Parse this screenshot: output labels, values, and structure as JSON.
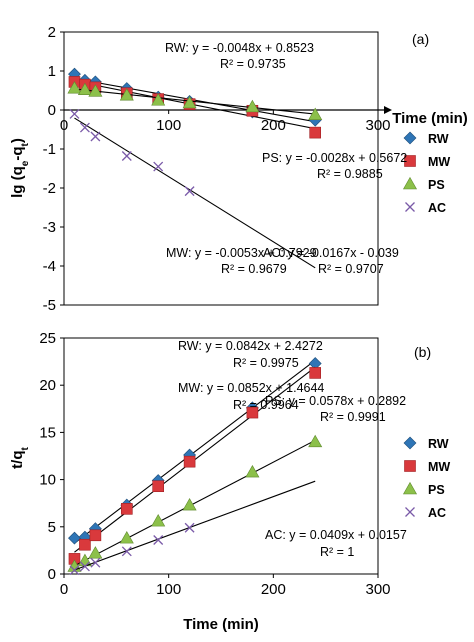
{
  "chart_data": [
    {
      "panel": "(a)",
      "type": "scatter",
      "xlabel": "Time (min)",
      "ylabel": "lg (qe-qt)",
      "xlim": [
        0,
        300
      ],
      "ylim": [
        -5,
        2
      ],
      "xticks": [
        0,
        100,
        200,
        300
      ],
      "yticks": [
        2,
        1,
        0,
        -1,
        -2,
        -3,
        -4,
        -5
      ],
      "legend_position": "right",
      "series": [
        {
          "name": "RW",
          "color": "#2e75b6",
          "marker": "diamond",
          "x": [
            10,
            20,
            30,
            60,
            90,
            120,
            180,
            240
          ],
          "y": [
            0.92,
            0.76,
            0.72,
            0.55,
            0.33,
            0.22,
            -0.05,
            -0.26
          ],
          "fit": {
            "slope": -0.0048,
            "intercept": 0.8523,
            "x_range": [
              10,
              240
            ]
          },
          "equation": "RW: y = -0.0048x + 0.8523",
          "r2": "R² = 0.9735"
        },
        {
          "name": "MW",
          "color": "#d9393c",
          "marker": "square",
          "x": [
            10,
            20,
            30,
            60,
            90,
            120,
            180,
            240
          ],
          "y": [
            0.72,
            0.65,
            0.58,
            0.43,
            0.28,
            0.15,
            -0.02,
            -0.58
          ],
          "fit": {
            "slope": -0.0053,
            "intercept": 0.7929,
            "x_range": [
              10,
              240
            ]
          },
          "equation": "MW: y = -0.0053x + 0.7929",
          "r2": "R² = 0.9679"
        },
        {
          "name": "PS",
          "color": "#8cc04a",
          "marker": "triangle",
          "x": [
            10,
            20,
            30,
            60,
            90,
            120,
            180,
            240
          ],
          "y": [
            0.56,
            0.52,
            0.48,
            0.38,
            0.25,
            0.18,
            0.08,
            -0.12
          ],
          "fit": {
            "slope": -0.0028,
            "intercept": 0.5672,
            "x_range": [
              10,
              240
            ]
          },
          "equation": "PS: y = -0.0028x + 0.5672",
          "r2": "R² = 0.9885"
        },
        {
          "name": "AC",
          "color": "#7a5aa8",
          "marker": "x",
          "x": [
            10,
            20,
            30,
            60,
            90,
            120
          ],
          "y": [
            -0.1,
            -0.45,
            -0.68,
            -1.18,
            -1.45,
            -2.08
          ],
          "fit": {
            "slope": -0.0167,
            "intercept": -0.039,
            "x_range": [
              10,
              240
            ]
          },
          "equation": "AC: y = -0.0167x - 0.039",
          "r2": "R² = 0.9707"
        }
      ]
    },
    {
      "panel": "(b)",
      "type": "scatter",
      "xlabel": "Time (min)",
      "ylabel": "t/qt",
      "xlim": [
        0,
        300
      ],
      "ylim": [
        0,
        25
      ],
      "xticks": [
        0,
        100,
        200,
        300
      ],
      "yticks": [
        0,
        5,
        10,
        15,
        20,
        25
      ],
      "legend_position": "right",
      "series": [
        {
          "name": "RW",
          "color": "#2e75b6",
          "marker": "diamond",
          "x": [
            10,
            20,
            30,
            60,
            90,
            120,
            180,
            240
          ],
          "y": [
            3.8,
            3.9,
            4.8,
            7.3,
            9.9,
            12.6,
            17.6,
            22.3
          ],
          "fit": {
            "slope": 0.0842,
            "intercept": 2.4272,
            "x_range": [
              10,
              240
            ]
          },
          "equation": "RW: y = 0.0842x + 2.4272",
          "r2": "R² = 0.9975"
        },
        {
          "name": "MW",
          "color": "#d9393c",
          "marker": "square",
          "x": [
            10,
            20,
            30,
            60,
            90,
            120,
            180,
            240
          ],
          "y": [
            1.6,
            3.1,
            4.1,
            6.9,
            9.3,
            11.9,
            17.1,
            21.3
          ],
          "fit": {
            "slope": 0.0852,
            "intercept": 1.4644,
            "x_range": [
              10,
              240
            ]
          },
          "equation": "MW: y = 0.0852x + 1.4644",
          "r2": "R² = 0.9964"
        },
        {
          "name": "PS",
          "color": "#8cc04a",
          "marker": "triangle",
          "x": [
            10,
            20,
            30,
            60,
            90,
            120,
            180,
            240
          ],
          "y": [
            0.8,
            1.4,
            2.2,
            3.8,
            5.6,
            7.3,
            10.8,
            14.0
          ],
          "fit": {
            "slope": 0.0578,
            "intercept": 0.2892,
            "x_range": [
              10,
              240
            ]
          },
          "equation": "PS: y = 0.0578x + 0.2892",
          "r2": "R² = 0.9991"
        },
        {
          "name": "AC",
          "color": "#7a5aa8",
          "marker": "x",
          "x": [
            10,
            20,
            30,
            60,
            90,
            120
          ],
          "y": [
            0.4,
            0.8,
            1.2,
            2.4,
            3.6,
            4.9
          ],
          "fit": {
            "slope": 0.0409,
            "intercept": 0.0157,
            "x_range": [
              10,
              240
            ]
          },
          "equation": "AC: y = 0.0409x + 0.0157",
          "r2": "R² = 1"
        }
      ]
    }
  ]
}
